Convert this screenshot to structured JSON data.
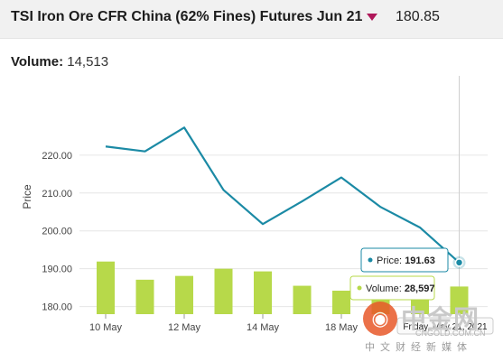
{
  "header": {
    "title": "TSI Iron Ore CFR China (62% Fines) Futures Jun 21",
    "price": "180.85",
    "change_direction": "down-arrow-icon",
    "change_color": "#b0185a"
  },
  "volume_summary": {
    "label": "Volume:",
    "value": "14,513"
  },
  "colors": {
    "line": "#1b8aa5",
    "bar": "#b7d94a",
    "grid": "#e6e6e6"
  },
  "tooltip": {
    "price_label": "Price:",
    "price_value": "191.63",
    "volume_label": "Volume:",
    "volume_value": "28,597",
    "date": "Friday, May 21, 2021"
  },
  "watermark": {
    "brand": "中金网",
    "url": "CNGOLD.COM.CN",
    "subtitle": "中文财经新媒体"
  },
  "chart_data": {
    "type": "line",
    "ylabel": "Price",
    "xlabel": "",
    "ylim": [
      178,
      240
    ],
    "yticks": [
      "180.00",
      "190.00",
      "200.00",
      "210.00",
      "220.00"
    ],
    "ytick_values": [
      180,
      190,
      200,
      210,
      220
    ],
    "x_tick_labels": [
      "10 May",
      "12 May",
      "14 May",
      "18 May",
      "20 May"
    ],
    "x_tick_index": [
      0,
      2,
      4,
      6,
      8
    ],
    "dates": [
      "10 May",
      "11 May",
      "12 May",
      "13 May",
      "14 May",
      "17 May",
      "18 May",
      "19 May",
      "20 May",
      "21 May"
    ],
    "series": [
      {
        "type": "line",
        "values": [
          222.3,
          221.0,
          227.3,
          210.8,
          201.8,
          207.8,
          214.1,
          206.3,
          200.9,
          191.63
        ]
      },
      {
        "type": "bar",
        "values": [
          191.9,
          187.1,
          188.1,
          190.0,
          189.3,
          185.5,
          184.2,
          184.1,
          184.0,
          185.3
        ]
      }
    ],
    "grid": true
  }
}
